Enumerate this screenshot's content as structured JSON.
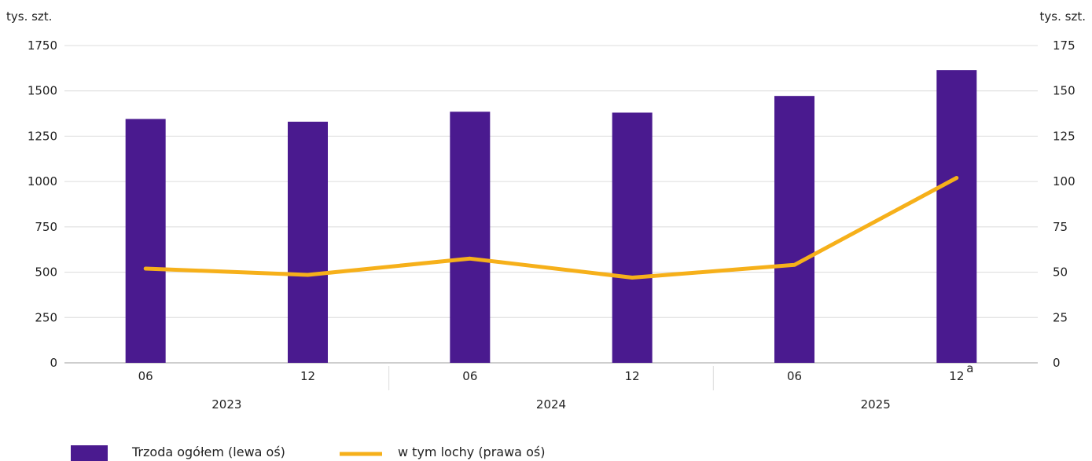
{
  "chart_data": {
    "type": "bar",
    "y_unit_left": "tys. szt.",
    "y_unit_right": "tys. szt.",
    "categories": [
      "06",
      "12",
      "06",
      "12",
      "06",
      "12"
    ],
    "category_superscripts": [
      "",
      "",
      "",
      "",
      "",
      "a"
    ],
    "years": [
      {
        "label": "2023",
        "span": [
          0,
          1
        ]
      },
      {
        "label": "2024",
        "span": [
          2,
          3
        ]
      },
      {
        "label": "2025",
        "span": [
          4,
          5
        ]
      }
    ],
    "y_left": {
      "min": 0,
      "max": 1750,
      "ticks": [
        "0",
        "250",
        "500",
        "750",
        "1000",
        "1250",
        "1500",
        "1750"
      ]
    },
    "y_right": {
      "min": 0,
      "max": 175,
      "ticks": [
        "0",
        "25",
        "50",
        "75",
        "100",
        "125",
        "150",
        "175"
      ]
    },
    "grid": true,
    "legend_position": "bottom-left",
    "series": [
      {
        "name": "Trzoda ogółem (lewa oś)",
        "type": "bar",
        "axis": "left",
        "color": "#4a1a8f",
        "values": [
          1345,
          1330,
          1385,
          1380,
          1472,
          1615
        ]
      },
      {
        "name": "w tym lochy (prawa oś)",
        "type": "line",
        "axis": "right",
        "color": "#f6b01a",
        "values": [
          52,
          48.5,
          57.5,
          47,
          54,
          102
        ]
      }
    ]
  }
}
